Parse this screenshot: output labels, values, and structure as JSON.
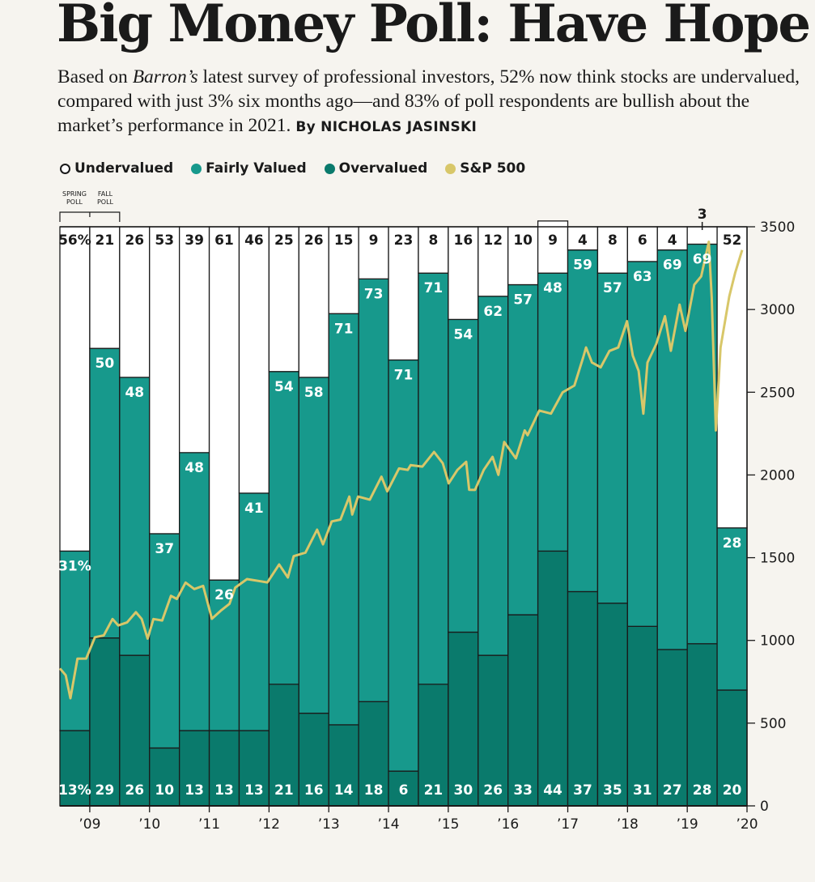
{
  "headline": "Big Money Poll: Have Hope",
  "deck": {
    "before": "Based on ",
    "italic": "Barron’s",
    "after": " latest survey of professional investors, 52% now think stocks are undervalued, compared with just 3% six months ago—and 83% of poll respondents are bullish about the market’s performance in 2021.",
    "byline": "By NICHOLAS JASINSKI"
  },
  "legend": [
    {
      "label": "Undervalued",
      "color": "#ffffff",
      "outline": true
    },
    {
      "label": "Fairly Valued",
      "color": "#17998c"
    },
    {
      "label": "Overvalued",
      "color": "#0a7a6c"
    },
    {
      "label": "S&P 500",
      "color": "#d8c769"
    }
  ],
  "poll_notes": {
    "spring": [
      "SPRING",
      "POLL"
    ],
    "fall": [
      "FALL",
      "POLL"
    ]
  },
  "colors": {
    "undervalued": "#ffffff",
    "fairly": "#17998c",
    "overvalued": "#0a7a6c",
    "sp500": "#d8c769",
    "ink": "#1a1a1a"
  },
  "chart_data": {
    "type": "bar",
    "stacked": true,
    "percent_suffix_first_bar": true,
    "series": [
      {
        "name": "Overvalued",
        "values": [
          13,
          29,
          26,
          10,
          13,
          13,
          13,
          21,
          16,
          14,
          18,
          6,
          21,
          30,
          26,
          33,
          44,
          37,
          35,
          31,
          27,
          28,
          20
        ]
      },
      {
        "name": "Fairly Valued",
        "values": [
          31,
          50,
          48,
          37,
          48,
          26,
          41,
          54,
          58,
          71,
          73,
          71,
          71,
          54,
          62,
          57,
          48,
          59,
          57,
          63,
          69,
          69,
          28
        ]
      },
      {
        "name": "Undervalued",
        "values": [
          56,
          21,
          26,
          53,
          39,
          61,
          46,
          25,
          26,
          15,
          9,
          23,
          8,
          16,
          12,
          10,
          9,
          4,
          8,
          6,
          4,
          3,
          52
        ]
      }
    ],
    "x_tick_labels": [
      "’09",
      "’10",
      "’11",
      "’12",
      "’13",
      "’14",
      "’15",
      "’16",
      "’17",
      "’18",
      "’19",
      "’20"
    ],
    "secondary_axis": {
      "name": "S&P 500",
      "ylim": [
        0,
        3500
      ],
      "ticks": [
        0,
        500,
        1000,
        1500,
        2000,
        2500,
        3000,
        3500
      ]
    },
    "sp500_line": {
      "x_start": 2009.0,
      "x_end": 2020.67,
      "points": [
        [
          2009.0,
          860
        ],
        [
          2009.1,
          760
        ],
        [
          2009.18,
          680
        ],
        [
          2009.3,
          860
        ],
        [
          2009.45,
          920
        ],
        [
          2009.6,
          990
        ],
        [
          2009.75,
          1060
        ],
        [
          2009.9,
          1100
        ],
        [
          2010.0,
          1120
        ],
        [
          2010.15,
          1080
        ],
        [
          2010.3,
          1200
        ],
        [
          2010.4,
          1100
        ],
        [
          2010.5,
          1040
        ],
        [
          2010.6,
          1100
        ],
        [
          2010.75,
          1150
        ],
        [
          2010.9,
          1240
        ],
        [
          2011.0,
          1280
        ],
        [
          2011.15,
          1320
        ],
        [
          2011.3,
          1340
        ],
        [
          2011.45,
          1300
        ],
        [
          2011.6,
          1160
        ],
        [
          2011.75,
          1150
        ],
        [
          2011.9,
          1250
        ],
        [
          2012.0,
          1290
        ],
        [
          2012.2,
          1400
        ],
        [
          2012.4,
          1330
        ],
        [
          2012.55,
          1380
        ],
        [
          2012.75,
          1430
        ],
        [
          2012.9,
          1410
        ],
        [
          2013.0,
          1480
        ],
        [
          2013.2,
          1560
        ],
        [
          2013.4,
          1640
        ],
        [
          2013.5,
          1610
        ],
        [
          2013.65,
          1690
        ],
        [
          2013.8,
          1760
        ],
        [
          2013.95,
          1840
        ],
        [
          2014.0,
          1790
        ],
        [
          2014.1,
          1840
        ],
        [
          2014.3,
          1880
        ],
        [
          2014.5,
          1960
        ],
        [
          2014.6,
          1930
        ],
        [
          2014.8,
          2010
        ],
        [
          2014.95,
          2060
        ],
        [
          2015.0,
          2030
        ],
        [
          2015.2,
          2080
        ],
        [
          2015.4,
          2110
        ],
        [
          2015.55,
          2100
        ],
        [
          2015.65,
          1920
        ],
        [
          2015.8,
          2060
        ],
        [
          2015.95,
          2050
        ],
        [
          2016.0,
          1940
        ],
        [
          2016.1,
          1880
        ],
        [
          2016.25,
          2060
        ],
        [
          2016.4,
          2080
        ],
        [
          2016.5,
          2030
        ],
        [
          2016.6,
          2170
        ],
        [
          2016.8,
          2130
        ],
        [
          2016.95,
          2240
        ],
        [
          2017.0,
          2270
        ],
        [
          2017.2,
          2360
        ],
        [
          2017.4,
          2400
        ],
        [
          2017.6,
          2470
        ],
        [
          2017.8,
          2570
        ],
        [
          2017.95,
          2680
        ],
        [
          2018.0,
          2800
        ],
        [
          2018.1,
          2650
        ],
        [
          2018.25,
          2680
        ],
        [
          2018.4,
          2720
        ],
        [
          2018.55,
          2800
        ],
        [
          2018.7,
          2900
        ],
        [
          2018.8,
          2750
        ],
        [
          2018.9,
          2600
        ],
        [
          2018.98,
          2400
        ],
        [
          2019.05,
          2650
        ],
        [
          2019.2,
          2820
        ],
        [
          2019.35,
          2930
        ],
        [
          2019.45,
          2780
        ],
        [
          2019.6,
          3000
        ],
        [
          2019.7,
          2900
        ],
        [
          2019.85,
          3120
        ],
        [
          2019.97,
          3230
        ],
        [
          2020.1,
          3380
        ],
        [
          2020.15,
          3100
        ],
        [
          2020.22,
          2240
        ],
        [
          2020.3,
          2800
        ],
        [
          2020.45,
          3050
        ],
        [
          2020.55,
          3250
        ],
        [
          2020.67,
          3330
        ]
      ]
    },
    "grid": false,
    "legend_position": "top-left"
  }
}
